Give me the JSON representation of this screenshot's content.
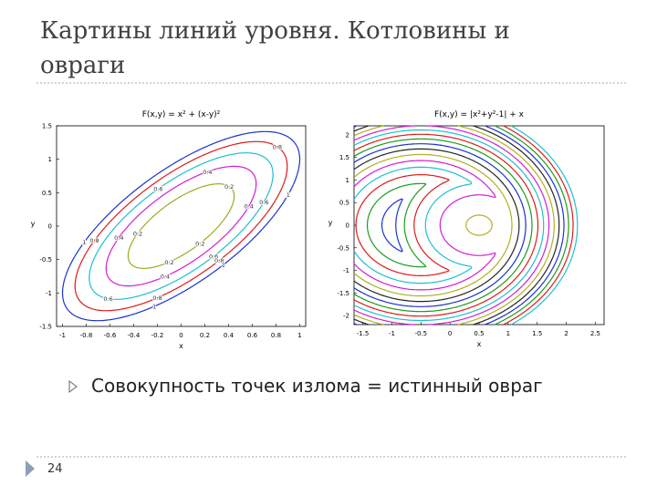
{
  "slide": {
    "title": "Картины линий уровня. Котловины и овраги",
    "bullet": "Совокупность точек излома = истинный овраг",
    "page_number": "24"
  },
  "chart_data": [
    {
      "type": "contour",
      "title": "F(x,y) = x² + (x-y)²",
      "x_label": "x",
      "y_label": "y",
      "xlim": [
        -1.05,
        1.05
      ],
      "ylim": [
        -1.5,
        1.5
      ],
      "xticks": [
        -1,
        -0.8,
        -0.6,
        -0.4,
        -0.2,
        0,
        0.2,
        0.4,
        0.6,
        0.8,
        1
      ],
      "yticks": [
        -1.5,
        -1,
        -0.5,
        0,
        0.5,
        1,
        1.5
      ],
      "levels": [
        0.2,
        0.4,
        0.6,
        0.8,
        1
      ],
      "colors": [
        "#9aaa1e",
        "#d21bd2",
        "#1bbfd0",
        "#e01818",
        "#1a2fd0"
      ],
      "level_labels": true
    },
    {
      "type": "contour",
      "title": "F(x,y) = |x²+y²-1| + x",
      "x_label": "x",
      "y_label": "y",
      "xlim": [
        -1.65,
        2.65
      ],
      "ylim": [
        -2.2,
        2.2
      ],
      "xticks": [
        -1.5,
        -1,
        -0.5,
        0,
        0.5,
        1,
        1.5,
        2,
        2.5
      ],
      "yticks": [
        -2,
        -1.5,
        -1,
        -0.5,
        0,
        0.5,
        1,
        1.5,
        2
      ],
      "levels": [
        -0.8,
        -0.4,
        0,
        0.4,
        0.8,
        1.2,
        1.6,
        2,
        2.4,
        2.8,
        3.2,
        3.6,
        4,
        4.4,
        4.8,
        5.2,
        5.6,
        6
      ],
      "colors": [
        "#1a2fd0",
        "#1a9a1a",
        "#e01818",
        "#1bbfd0",
        "#d21bd2",
        "#b0b020",
        "#222222"
      ],
      "level_labels": false
    }
  ]
}
